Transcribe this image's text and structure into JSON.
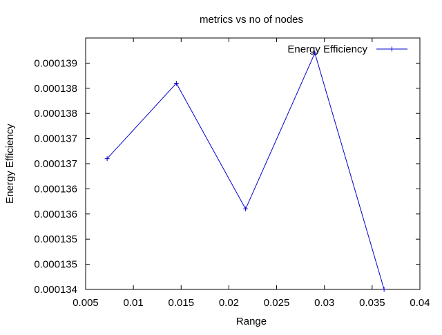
{
  "chart_data": {
    "type": "line",
    "title": "metrics vs no of nodes",
    "xlabel": "Range",
    "ylabel": "Energy Efficiency",
    "xlim": [
      0.005,
      0.04
    ],
    "ylim": [
      0.000134,
      0.000139
    ],
    "x_ticks": [
      {
        "value": 0.005,
        "label": "0.005"
      },
      {
        "value": 0.01,
        "label": "0.01"
      },
      {
        "value": 0.015,
        "label": "0.015"
      },
      {
        "value": 0.02,
        "label": "0.02"
      },
      {
        "value": 0.025,
        "label": "0.025"
      },
      {
        "value": 0.03,
        "label": "0.03"
      },
      {
        "value": 0.035,
        "label": "0.035"
      },
      {
        "value": 0.04,
        "label": "0.04"
      }
    ],
    "y_ticks": [
      {
        "value": 0.000134,
        "label": "0.000134"
      },
      {
        "value": 0.0001345,
        "label": "0.000135"
      },
      {
        "value": 0.000135,
        "label": "0.000135"
      },
      {
        "value": 0.0001355,
        "label": "0.000136"
      },
      {
        "value": 0.000136,
        "label": "0.000136"
      },
      {
        "value": 0.0001365,
        "label": "0.000137"
      },
      {
        "value": 0.000137,
        "label": "0.000137"
      },
      {
        "value": 0.0001375,
        "label": "0.000138"
      },
      {
        "value": 0.000138,
        "label": "0.000138"
      },
      {
        "value": 0.0001385,
        "label": "0.000139"
      }
    ],
    "grid": false,
    "legend_position": "top-right",
    "series": [
      {
        "name": "Energy Efficiency",
        "color": "#0000cc",
        "marker": "plus",
        "x": [
          0.00725,
          0.0145,
          0.02175,
          0.029,
          0.03625
        ],
        "y": [
          0.0001366,
          0.0001381,
          0.0001356,
          0.0001387,
          0.000134
        ]
      }
    ]
  }
}
